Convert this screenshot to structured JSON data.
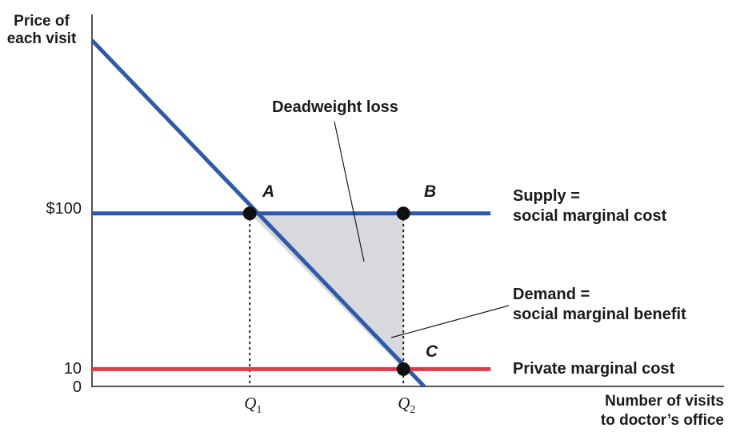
{
  "chart_data": {
    "type": "line",
    "title": "",
    "ylabel": [
      "Price of",
      "each visit"
    ],
    "xlabel": [
      "Number of visits",
      "to doctor’s office"
    ],
    "ylim": [
      0,
      215
    ],
    "xlim": [
      0,
      100
    ],
    "y_ticks": [
      {
        "value": 100,
        "label": "$100"
      },
      {
        "value": 10,
        "label": "10"
      },
      {
        "value": 0,
        "label": "0"
      }
    ],
    "x_ticks": [
      {
        "value": 38,
        "label": "Q",
        "sub": "1"
      },
      {
        "value": 75,
        "label": "Q",
        "sub": "2"
      }
    ],
    "series": [
      {
        "name": "Demand = social marginal benefit",
        "label_lines": [
          "Demand =",
          "social marginal benefit"
        ],
        "color": "#2f5aa8",
        "points": [
          [
            0,
            200
          ],
          [
            80,
            0
          ]
        ]
      },
      {
        "name": "Supply = social marginal cost",
        "label_lines": [
          "Supply =",
          "social marginal cost"
        ],
        "color": "#2f5aa8",
        "points": [
          [
            0,
            100
          ],
          [
            96,
            100
          ]
        ]
      },
      {
        "name": "Private marginal cost",
        "label_lines": [
          "Private marginal cost"
        ],
        "color": "#e03a4a",
        "points": [
          [
            0,
            10
          ],
          [
            96,
            10
          ]
        ]
      }
    ],
    "points": [
      {
        "label": "A",
        "x": 38,
        "y": 100
      },
      {
        "label": "B",
        "x": 75,
        "y": 100
      },
      {
        "label": "C",
        "x": 75,
        "y": 10
      }
    ],
    "shaded_region": {
      "name": "Deadweight loss",
      "vertices": [
        [
          38,
          100
        ],
        [
          75,
          100
        ],
        [
          75,
          10
        ]
      ],
      "color": "#d8d9de"
    },
    "annotations": [
      {
        "text": "Deadweight loss"
      }
    ],
    "grid": false
  }
}
